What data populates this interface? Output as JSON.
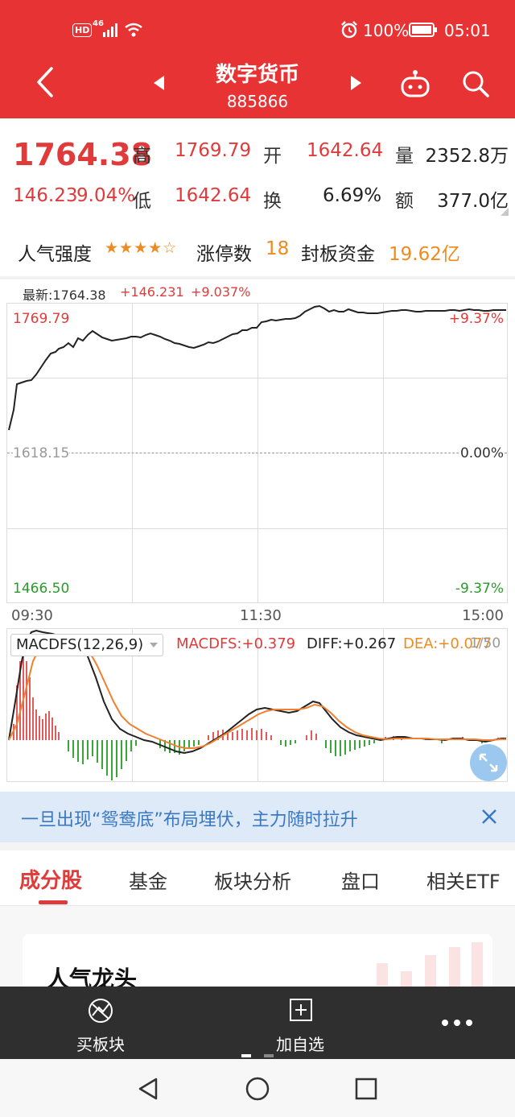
{
  "status_bar": {
    "network": "46",
    "hd": "HD",
    "battery": "100%",
    "time": "05:01"
  },
  "header": {
    "title": "数字货币",
    "code": "885866"
  },
  "quote": {
    "price": "1764.38",
    "change": "146.23",
    "change_pct": "9.04%",
    "high_label": "高",
    "high": "1769.79",
    "open_label": "开",
    "open": "1642.64",
    "volume_label": "量",
    "volume": "2352.8万",
    "low_label": "低",
    "low": "1642.64",
    "turnover_label": "换",
    "turnover": "6.69%",
    "amount_label": "额",
    "amount": "377.0亿"
  },
  "stats": {
    "popularity_label": "人气强度",
    "stars": "★★★★☆",
    "limit_up_label": "涨停数",
    "limit_up": "18",
    "seal_label": "封板资金",
    "seal": "19.62亿"
  },
  "intraday_chart": {
    "latest_label": "最新:1764.38",
    "change_label": "+146.231",
    "pct_label": "+9.037%",
    "y_top": "1769.79",
    "y_mid": "1618.15",
    "y_bottom": "1466.50",
    "pct_top": "+9.37%",
    "pct_mid": "0.00%",
    "pct_bottom": "-9.37%",
    "time_start": "09:30",
    "time_mid": "11:30",
    "time_end": "15:00"
  },
  "macd": {
    "selector": "MACDFS(12,26,9)",
    "macdfs": "MACDFS:+0.379",
    "diff": "DIFF:+0.267",
    "dea": "DEA:+0.077",
    "right_label": "1/50"
  },
  "banner": {
    "text": "一旦出现“鸳鸯底”布局埋伏，主力随时拉升"
  },
  "tabs": [
    "成分股",
    "基金",
    "板块分析",
    "盘口",
    "相关ETF"
  ],
  "section": {
    "title": "人气龙头"
  },
  "bottom_bar": {
    "buy": "买板块",
    "add": "加自选"
  },
  "colors": {
    "header": "#e83335",
    "up": "#e13a3a",
    "down": "#2b9a2b",
    "accent": "#ef8a1f"
  }
}
